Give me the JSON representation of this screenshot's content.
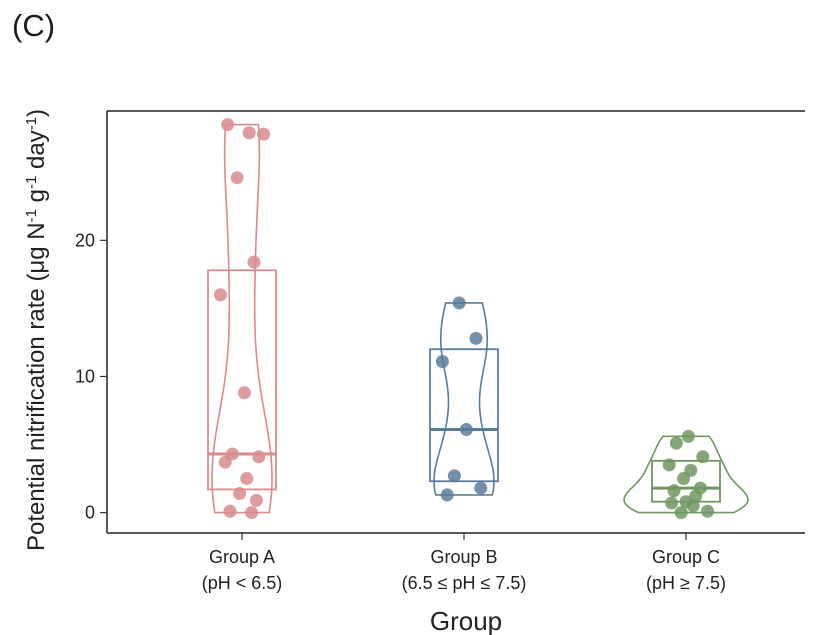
{
  "panel_label": "(C)",
  "chart_data": {
    "type": "box-violin-jitter",
    "ylabel_main": "Potential nitrification rate (μg N",
    "ylabel_sup1": "-1",
    "ylabel_mid": " g",
    "ylabel_sup2": "-1",
    "ylabel_mid2": " day",
    "ylabel_sup3": "-1",
    "ylabel_end": ")",
    "xlabel": "Group",
    "ylim": [
      -1.5,
      29.5
    ],
    "yticks": [
      "0",
      "10",
      "20"
    ],
    "grid": false,
    "groups": [
      {
        "label_line1": "Group A",
        "label_line2": "(pH < 6.5)",
        "color": "#d98b8b",
        "box": {
          "q1": 1.7,
          "median": 4.3,
          "q3": 17.8
        },
        "points": [
          28.5,
          27.9,
          27.8,
          24.6,
          18.4,
          16.0,
          8.8,
          4.3,
          4.1,
          3.7,
          2.5,
          1.4,
          0.9,
          0.1,
          0.0
        ]
      },
      {
        "label_line1": "Group B",
        "label_line2": "(6.5 ≤ pH ≤ 7.5)",
        "color": "#5b7b9a",
        "box": {
          "q1": 2.3,
          "median": 6.1,
          "q3": 12.0
        },
        "points": [
          15.4,
          12.8,
          11.1,
          6.1,
          2.7,
          1.8,
          1.3
        ]
      },
      {
        "label_line1": "Group C",
        "label_line2": "(pH ≥ 7.5)",
        "color": "#6f9660",
        "box": {
          "q1": 0.8,
          "median": 1.8,
          "q3": 3.8
        },
        "points": [
          5.6,
          5.1,
          4.1,
          3.5,
          3.1,
          2.5,
          1.8,
          1.6,
          1.2,
          0.8,
          0.7,
          0.5,
          0.1,
          0.0
        ]
      }
    ]
  }
}
